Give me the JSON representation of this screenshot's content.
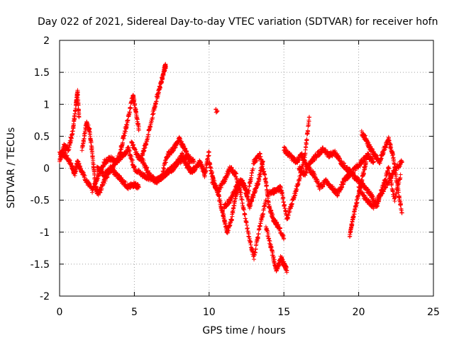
{
  "chart_data": {
    "type": "scatter",
    "title": "Day 022 of 2021, Sidereal Day-to-day VTEC variation (SDTVAR) for receiver hofn",
    "xlabel": "GPS time / hours",
    "ylabel": "SDTVAR / TECUs",
    "xlim": [
      0,
      25
    ],
    "ylim": [
      -2,
      2
    ],
    "xticks": [
      0,
      5,
      10,
      15,
      20,
      25
    ],
    "xtick_labels": [
      "0",
      "5",
      "10",
      "15",
      "20",
      "25"
    ],
    "yticks": [
      -2,
      -1.5,
      -1,
      -0.5,
      0,
      0.5,
      1,
      1.5,
      2
    ],
    "ytick_labels": [
      "-2",
      "-1.5",
      "-1",
      "-0.5",
      "0",
      "0.5",
      "1",
      "1.5",
      "2"
    ],
    "grid": true,
    "marker": "+",
    "color": "#ff0000",
    "series": [
      {
        "name": "SDTVAR",
        "tracks": [
          {
            "x": [
              0.0,
              0.4,
              0.8,
              1.0,
              1.2,
              1.4,
              1.8,
              2.2,
              2.6,
              3.0,
              3.4,
              3.8,
              4.2,
              4.6,
              5.0,
              5.5,
              6.0,
              6.5,
              7.0,
              7.5,
              8.0,
              8.5,
              9.0
            ],
            "y": [
              0.25,
              0.2,
              0.05,
              -0.1,
              0.1,
              0.0,
              -0.2,
              -0.35,
              -0.1,
              0.1,
              0.15,
              0.1,
              0.2,
              0.3,
              0.0,
              -0.1,
              -0.15,
              -0.2,
              -0.1,
              0.0,
              0.1,
              0.2,
              0.1
            ]
          },
          {
            "x": [
              0.0,
              0.3,
              0.6,
              0.9,
              1.1,
              1.2,
              1.3
            ],
            "y": [
              0.1,
              0.35,
              0.3,
              0.6,
              1.0,
              1.2,
              0.8
            ]
          },
          {
            "x": [
              1.5,
              1.8,
              2.0,
              2.2,
              2.4,
              2.6,
              3.0,
              3.4,
              3.8,
              4.2,
              4.6,
              5.0,
              5.3
            ],
            "y": [
              0.3,
              0.7,
              0.6,
              0.2,
              -0.3,
              -0.4,
              -0.2,
              0.0,
              -0.1,
              -0.2,
              -0.3,
              -0.25,
              -0.3
            ]
          },
          {
            "x": [
              2.5,
              3.0,
              3.5,
              4.0,
              4.3,
              4.6,
              4.9,
              5.1,
              5.3
            ],
            "y": [
              0.0,
              -0.1,
              0.0,
              0.2,
              0.5,
              0.8,
              1.15,
              0.9,
              0.6
            ]
          },
          {
            "x": [
              5.5,
              5.8,
              6.2,
              6.5,
              6.8,
              7.0,
              7.1
            ],
            "y": [
              0.2,
              0.4,
              0.8,
              1.1,
              1.35,
              1.55,
              1.6
            ]
          },
          {
            "x": [
              4.8,
              5.2,
              5.6,
              6.0,
              6.4,
              6.8,
              7.2,
              7.6,
              8.0,
              8.4,
              8.7
            ],
            "y": [
              0.4,
              0.2,
              0.1,
              -0.1,
              -0.2,
              -0.15,
              0.2,
              0.3,
              0.45,
              0.3,
              0.1
            ]
          },
          {
            "x": [
              7.0,
              7.3,
              7.6,
              7.9,
              8.2,
              8.5,
              8.8,
              9.1,
              9.4,
              9.7,
              10.0
            ],
            "y": [
              -0.1,
              -0.05,
              0.0,
              0.1,
              0.2,
              0.05,
              -0.05,
              0.0,
              0.1,
              -0.1,
              0.25
            ]
          },
          {
            "x": [
              10.5
            ],
            "y": [
              0.9
            ]
          },
          {
            "x": [
              10.0,
              10.3,
              10.6,
              10.9,
              11.2,
              11.5,
              11.8,
              12.1,
              12.4,
              12.7,
              13.0,
              13.3,
              13.6
            ],
            "y": [
              0.1,
              -0.2,
              -0.4,
              -0.7,
              -1.0,
              -0.8,
              -0.4,
              -0.2,
              -0.3,
              -0.6,
              -0.4,
              -0.2,
              0.1
            ]
          },
          {
            "x": [
              10.2,
              10.6,
              11.0,
              11.4,
              11.8,
              12.2,
              12.6,
              13.0,
              13.4,
              13.8
            ],
            "y": [
              -0.2,
              -0.35,
              -0.2,
              0.0,
              -0.1,
              -0.5,
              -1.0,
              -1.4,
              -0.9,
              -0.5
            ]
          },
          {
            "x": [
              11.0,
              11.4,
              11.8,
              12.2,
              12.6,
              13.0,
              13.4,
              13.8,
              14.0,
              14.3,
              14.6,
              15.0
            ],
            "y": [
              -0.6,
              -0.5,
              -0.3,
              -0.2,
              -0.4,
              0.1,
              0.2,
              -0.2,
              -0.6,
              -0.8,
              -0.9,
              -1.1
            ]
          },
          {
            "x": [
              13.8,
              14.2,
              14.5,
              14.8,
              15.0,
              15.2
            ],
            "y": [
              -0.9,
              -1.3,
              -1.6,
              -1.4,
              -1.5,
              -1.6
            ]
          },
          {
            "x": [
              14.0,
              14.4,
              14.8,
              15.2,
              15.6,
              16.0,
              16.4,
              16.7
            ],
            "y": [
              -0.4,
              -0.35,
              -0.3,
              -0.8,
              -0.5,
              -0.2,
              0.2,
              0.8
            ]
          },
          {
            "x": [
              15.0,
              15.4,
              15.8,
              16.2,
              16.6,
              17.0,
              17.4,
              17.8,
              18.2,
              18.6,
              19.0,
              19.4,
              19.8,
              20.2,
              20.6,
              21.0
            ],
            "y": [
              0.3,
              0.2,
              0.1,
              0.2,
              0.0,
              -0.1,
              -0.3,
              -0.2,
              -0.3,
              -0.4,
              -0.2,
              -0.1,
              0.0,
              0.1,
              0.2,
              0.1
            ]
          },
          {
            "x": [
              16.0,
              16.4,
              16.8,
              17.2,
              17.6,
              18.0,
              18.4,
              18.8,
              19.2,
              19.6,
              20.0,
              20.4,
              20.8,
              21.2,
              21.6,
              22.0,
              22.4,
              22.8
            ],
            "y": [
              0.0,
              -0.1,
              0.1,
              0.2,
              0.3,
              0.2,
              0.25,
              0.1,
              0.0,
              -0.1,
              -0.2,
              -0.3,
              -0.4,
              -0.6,
              -0.3,
              0.0,
              -0.5,
              -0.1
            ]
          },
          {
            "x": [
              19.4,
              19.6,
              19.9,
              20.2,
              20.5
            ],
            "y": [
              -1.05,
              -0.8,
              -0.5,
              -0.2,
              0.1
            ]
          },
          {
            "x": [
              20.2,
              20.5,
              20.8,
              21.1,
              21.4,
              21.7,
              22.0,
              22.3,
              22.6,
              22.9
            ],
            "y": [
              0.55,
              0.45,
              0.3,
              0.2,
              0.1,
              0.3,
              0.45,
              0.2,
              -0.3,
              -0.7
            ]
          },
          {
            "x": [
              20.0,
              20.5,
              21.0,
              21.5,
              22.0,
              22.5,
              22.9
            ],
            "y": [
              -0.3,
              -0.5,
              -0.6,
              -0.4,
              -0.2,
              0.0,
              0.1
            ]
          }
        ]
      }
    ]
  }
}
